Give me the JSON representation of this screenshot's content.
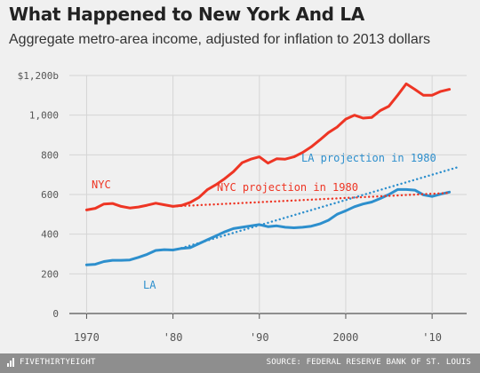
{
  "header": {
    "title": "What Happened to New York And LA",
    "subtitle": "Aggregate metro-area income, adjusted for inflation to 2013 dollars"
  },
  "chart_data": {
    "type": "line",
    "title": "What Happened to New York And LA",
    "subtitle": "Aggregate metro-area income, adjusted for inflation to 2013 dollars",
    "xlabel": "",
    "ylabel": "",
    "xlim": [
      1968,
      2014
    ],
    "ylim": [
      0,
      1200
    ],
    "x_ticks": [
      1970,
      1980,
      1990,
      2000,
      2010
    ],
    "x_tick_labels": [
      "1970",
      "'80",
      "'90",
      "2000",
      "'10"
    ],
    "y_ticks": [
      0,
      200,
      400,
      600,
      800,
      1000,
      1200
    ],
    "y_tick_labels": [
      "0",
      "200",
      "400",
      "600",
      "800",
      "1,000",
      "$1,200b"
    ],
    "grid": true,
    "colors": {
      "nyc": "#ee3524",
      "la": "#2d8fcd"
    },
    "series": [
      {
        "name": "NYC",
        "color": "#ee3524",
        "style": "solid",
        "x": [
          1970,
          1971,
          1972,
          1973,
          1974,
          1975,
          1976,
          1977,
          1978,
          1979,
          1980,
          1981,
          1982,
          1983,
          1984,
          1985,
          1986,
          1987,
          1988,
          1989,
          1990,
          1991,
          1992,
          1993,
          1994,
          1995,
          1996,
          1997,
          1998,
          1999,
          2000,
          2001,
          2002,
          2003,
          2004,
          2005,
          2006,
          2007,
          2008,
          2009,
          2010,
          2011,
          2012
        ],
        "y": [
          522,
          530,
          552,
          555,
          540,
          532,
          537,
          546,
          556,
          548,
          540,
          545,
          560,
          585,
          625,
          650,
          680,
          715,
          760,
          778,
          790,
          758,
          780,
          778,
          790,
          812,
          840,
          875,
          912,
          940,
          980,
          1000,
          985,
          988,
          1023,
          1045,
          1100,
          1158,
          1130,
          1100,
          1100,
          1120,
          1130
        ]
      },
      {
        "name": "LA",
        "color": "#2d8fcd",
        "style": "solid",
        "x": [
          1970,
          1971,
          1972,
          1973,
          1974,
          1975,
          1976,
          1977,
          1978,
          1979,
          1980,
          1981,
          1982,
          1983,
          1984,
          1985,
          1986,
          1987,
          1988,
          1989,
          1990,
          1991,
          1992,
          1993,
          1994,
          1995,
          1996,
          1997,
          1998,
          1999,
          2000,
          2001,
          2002,
          2003,
          2004,
          2005,
          2006,
          2007,
          2008,
          2009,
          2010,
          2011,
          2012
        ],
        "y": [
          245,
          248,
          262,
          268,
          268,
          270,
          283,
          298,
          318,
          322,
          320,
          328,
          332,
          352,
          372,
          392,
          412,
          428,
          435,
          442,
          448,
          438,
          442,
          435,
          432,
          435,
          440,
          452,
          470,
          500,
          518,
          538,
          552,
          562,
          580,
          600,
          625,
          625,
          622,
          598,
          590,
          602,
          612
        ]
      },
      {
        "name": "NYC projection in 1980",
        "color": "#ee3524",
        "style": "dotted",
        "x": [
          1980,
          2012
        ],
        "y": [
          540,
          608
        ]
      },
      {
        "name": "LA projection in 1980",
        "color": "#2d8fcd",
        "style": "dotted",
        "x": [
          1981,
          2013
        ],
        "y": [
          330,
          738
        ]
      }
    ],
    "annotations": [
      {
        "text": "NYC",
        "series": "NYC"
      },
      {
        "text": "LA",
        "series": "LA"
      },
      {
        "text": "NYC projection in 1980",
        "series": "NYC projection in 1980"
      },
      {
        "text": "LA projection in 1980",
        "series": "LA projection in 1980"
      }
    ]
  },
  "footer": {
    "brand": "FIVETHIRTYEIGHT",
    "source": "SOURCE: FEDERAL RESERVE BANK OF ST. LOUIS"
  }
}
